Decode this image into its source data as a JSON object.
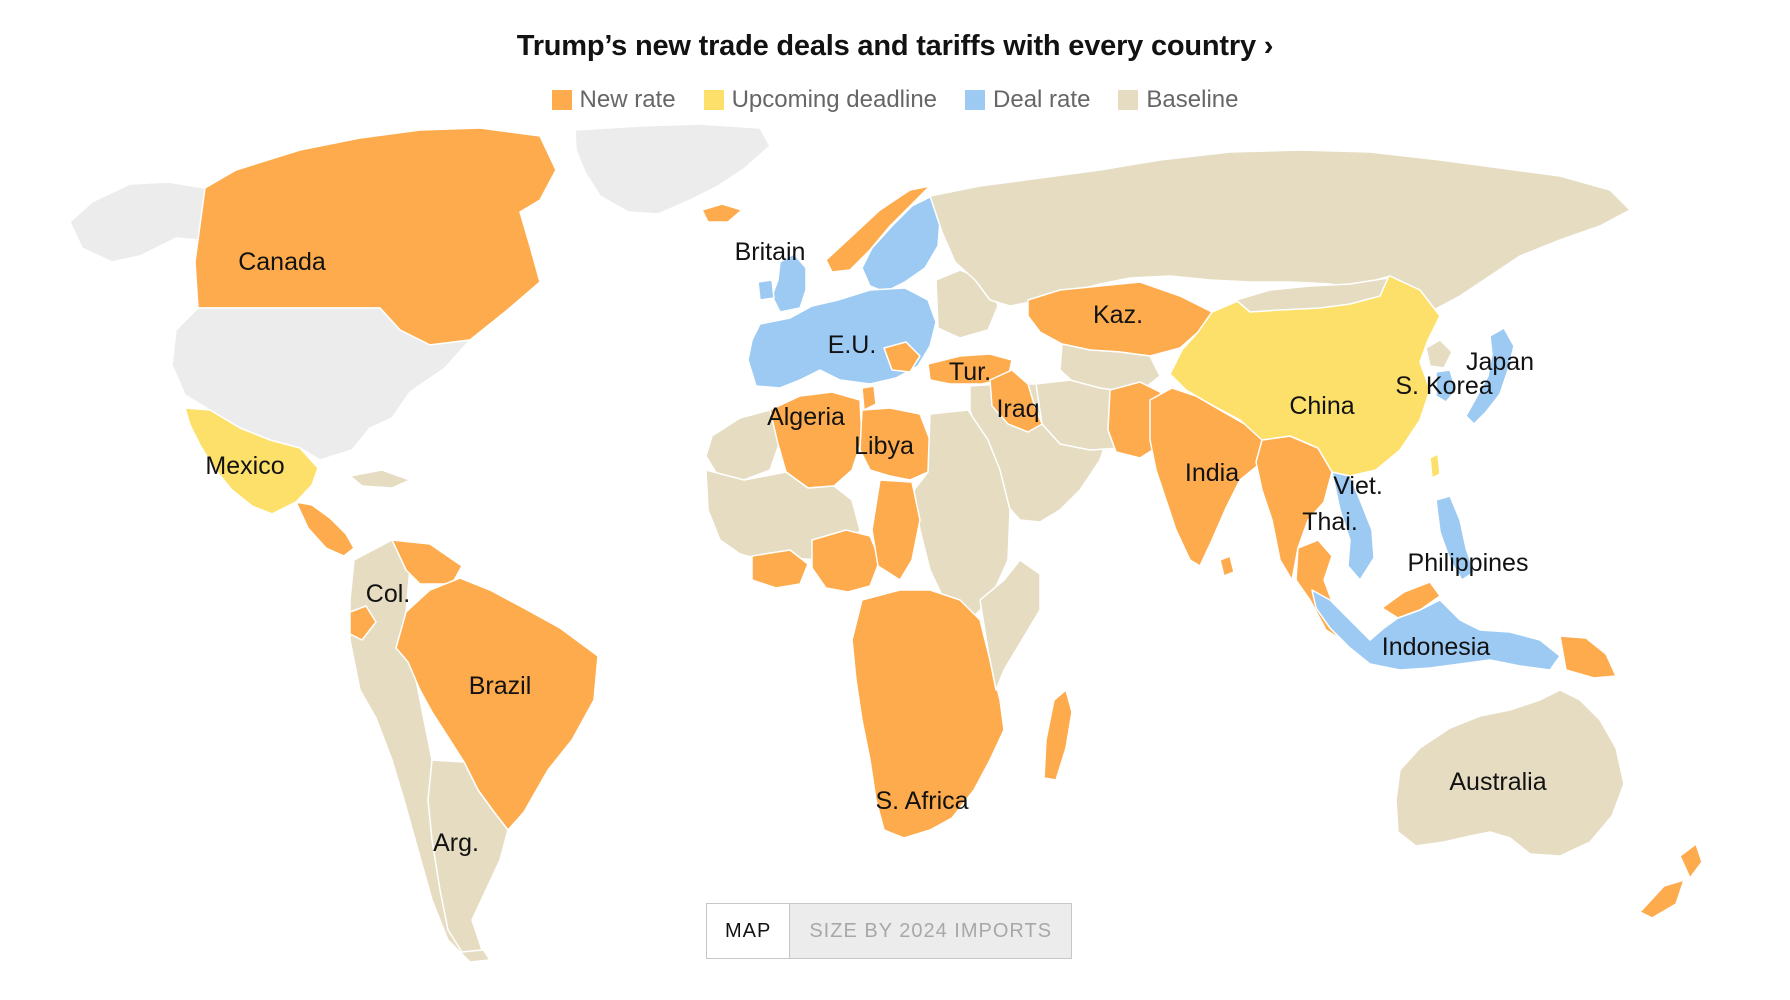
{
  "title": "Trump’s new trade deals and tariffs with every country",
  "title_chevron": "›",
  "legend": [
    {
      "label": "New rate",
      "color": "#fdab4c"
    },
    {
      "label": "Upcoming deadline",
      "color": "#fde06a"
    },
    {
      "label": "Deal rate",
      "color": "#9ccaf3"
    },
    {
      "label": "Baseline",
      "color": "#e5dcc2"
    }
  ],
  "other_color": "#ececec",
  "map_labels": {
    "canada": "Canada",
    "britain": "Britain",
    "eu": "E.U.",
    "kaz": "Kaz.",
    "japan": "Japan",
    "skorea": "S. Korea",
    "china": "China",
    "algeria": "Algeria",
    "tur": "Tur.",
    "iraq": "Iraq",
    "libya": "Libya",
    "mexico": "Mexico",
    "india": "India",
    "viet": "Viet.",
    "thai": "Thai.",
    "philippines": "Philippines",
    "col": "Col.",
    "brazil": "Brazil",
    "indonesia": "Indonesia",
    "australia": "Australia",
    "safrica": "S. Africa",
    "arg": "Arg."
  },
  "toggle": {
    "map": "MAP",
    "size": "SIZE BY 2024 IMPORTS"
  }
}
